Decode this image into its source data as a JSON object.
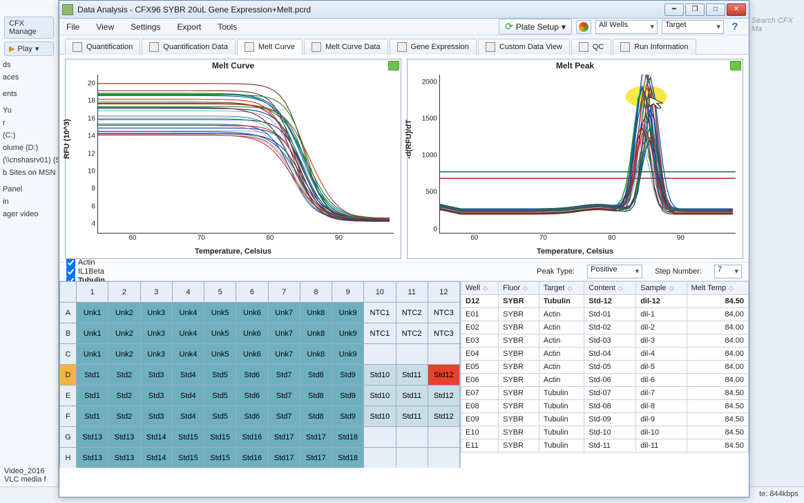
{
  "bg_left": {
    "tab1": "CFX Manage",
    "tab2": "Play",
    "items": [
      "ds",
      "aces",
      "",
      "ents",
      "",
      "Yu",
      "r",
      "(C:)",
      "olume (D:)",
      "(\\\\cnshasrv01) (S",
      "b Sites on MSN",
      "",
      "Panel",
      "in",
      "ager video"
    ],
    "bottomfile": "Video_2016",
    "bottomapp": "VLC media f"
  },
  "bg_right": {
    "search": "Search CFX Ma",
    "rate": "te: 844kbps"
  },
  "window": {
    "title": "Data Analysis - CFX96 SYBR 20uL Gene Expression+Melt.pcrd",
    "menus": [
      "File",
      "View",
      "Settings",
      "Export",
      "Tools"
    ],
    "plate_btn": "Plate Setup",
    "wells_dd": "All Wells",
    "target_dd": "Target",
    "tabs": [
      "Quantification",
      "Quantification Data",
      "Melt Curve",
      "Melt Curve Data",
      "Gene Expression",
      "Custom Data View",
      "QC",
      "Run Information"
    ],
    "active_tab": 2
  },
  "chart1": {
    "title": "Melt Curve",
    "xlabel": "Temperature, Celsius",
    "ylabel": "RFU (10^3)",
    "xticks": [
      60,
      70,
      80,
      90
    ],
    "yticks": [
      4,
      6,
      8,
      10,
      12,
      14,
      16,
      18,
      20
    ],
    "xlim": [
      55,
      98
    ],
    "ylim": [
      3,
      21
    ],
    "colors": [
      "#1a3a9e",
      "#0d5fb0",
      "#0f8c2d",
      "#d42a2a",
      "#7a2e1c"
    ]
  },
  "chart2": {
    "title": "Melt Peak",
    "xlabel": "Temperature, Celsius",
    "ylabel": "-d(RFU)/dT",
    "xticks": [
      60,
      70,
      80,
      90
    ],
    "yticks": [
      0,
      500,
      1000,
      1500,
      2000
    ],
    "xlim": [
      55,
      98
    ],
    "ylim": [
      -50,
      2100
    ],
    "thresholds": [
      {
        "y": 780,
        "color": "#0e6b3a"
      },
      {
        "y": 690,
        "color": "#b02a2a"
      }
    ],
    "peak_x": 85,
    "highlight_color": "#f7e634",
    "colors": [
      "#1a3a9e",
      "#0d5fb0",
      "#0f8c2d",
      "#d42a2a",
      "#7a2e1c"
    ]
  },
  "checks": [
    {
      "label": "Actin",
      "checked": true,
      "bold": false
    },
    {
      "label": "IL1Beta",
      "checked": true,
      "bold": false
    },
    {
      "label": "Tubulin",
      "checked": true,
      "bold": true
    }
  ],
  "peak_type_label": "Peak Type:",
  "peak_type_value": "Positive",
  "step_label": "Step Number:",
  "step_value": "7",
  "plate": {
    "cols": [
      1,
      2,
      3,
      4,
      5,
      6,
      7,
      8,
      9,
      10,
      11,
      12
    ],
    "rows": [
      "A",
      "B",
      "C",
      "D",
      "E",
      "F",
      "G",
      "H"
    ],
    "selected_row": "D",
    "cells": {
      "A": [
        "Unk1",
        "Unk2",
        "Unk3",
        "Unk4",
        "Unk5",
        "Unk6",
        "Unk7",
        "Unk8",
        "Unk9",
        "NTC1",
        "NTC2",
        "NTC3"
      ],
      "B": [
        "Unk1",
        "Unk2",
        "Unk3",
        "Unk4",
        "Unk5",
        "Unk6",
        "Unk7",
        "Unk8",
        "Unk9",
        "NTC1",
        "NTC2",
        "NTC3"
      ],
      "C": [
        "Unk1",
        "Unk2",
        "Unk3",
        "Unk4",
        "Unk5",
        "Unk6",
        "Unk7",
        "Unk8",
        "Unk9",
        "",
        "",
        ""
      ],
      "D": [
        "Std1",
        "Std2",
        "Std3",
        "Std4",
        "Std5",
        "Std6",
        "Std7",
        "Std8",
        "Std9",
        "Std10",
        "Std11",
        "Std12"
      ],
      "E": [
        "Std1",
        "Std2",
        "Std3",
        "Std4",
        "Std5",
        "Std6",
        "Std7",
        "Std8",
        "Std9",
        "Std10",
        "Std11",
        "Std12"
      ],
      "F": [
        "Std1",
        "Std2",
        "Std3",
        "Std4",
        "Std5",
        "Std6",
        "Std7",
        "Std8",
        "Std9",
        "Std10",
        "Std11",
        "Std12"
      ],
      "G": [
        "Std13",
        "Std13",
        "Std14",
        "Std15",
        "Std15",
        "Std16",
        "Std17",
        "Std17",
        "Std18",
        "",
        "",
        ""
      ],
      "H": [
        "Std13",
        "Std13",
        "Std14",
        "Std15",
        "Std15",
        "Std16",
        "Std17",
        "Std17",
        "Std18",
        "",
        "",
        ""
      ]
    }
  },
  "grid": {
    "headers": [
      "Well",
      "Fluor",
      "Target",
      "Content",
      "Sample",
      "Melt Temp"
    ],
    "rows": [
      {
        "well": "D12",
        "fluor": "SYBR",
        "target": "Tubulin",
        "content": "Std-12",
        "sample": "dil-12",
        "melt": "84.50",
        "bold": true
      },
      {
        "well": "E01",
        "fluor": "SYBR",
        "target": "Actin",
        "content": "Std-01",
        "sample": "dil-1",
        "melt": "84.00"
      },
      {
        "well": "E02",
        "fluor": "SYBR",
        "target": "Actin",
        "content": "Std-02",
        "sample": "dil-2",
        "melt": "84.00"
      },
      {
        "well": "E03",
        "fluor": "SYBR",
        "target": "Actin",
        "content": "Std-03",
        "sample": "dil-3",
        "melt": "84.00"
      },
      {
        "well": "E04",
        "fluor": "SYBR",
        "target": "Actin",
        "content": "Std-04",
        "sample": "dil-4",
        "melt": "84.00"
      },
      {
        "well": "E05",
        "fluor": "SYBR",
        "target": "Actin",
        "content": "Std-05",
        "sample": "dil-5",
        "melt": "84.00"
      },
      {
        "well": "E06",
        "fluor": "SYBR",
        "target": "Actin",
        "content": "Std-06",
        "sample": "dil-6",
        "melt": "84.00"
      },
      {
        "well": "E07",
        "fluor": "SYBR",
        "target": "Tubulin",
        "content": "Std-07",
        "sample": "dil-7",
        "melt": "84.50"
      },
      {
        "well": "E08",
        "fluor": "SYBR",
        "target": "Tubulin",
        "content": "Std-08",
        "sample": "dil-8",
        "melt": "84.50"
      },
      {
        "well": "E09",
        "fluor": "SYBR",
        "target": "Tubulin",
        "content": "Std-09",
        "sample": "dil-9",
        "melt": "84.50"
      },
      {
        "well": "E10",
        "fluor": "SYBR",
        "target": "Tubulin",
        "content": "Std-10",
        "sample": "dil-10",
        "melt": "84.50"
      },
      {
        "well": "E11",
        "fluor": "SYBR",
        "target": "Tubulin",
        "content": "Std-11",
        "sample": "dil-11",
        "melt": "84.50"
      }
    ]
  }
}
